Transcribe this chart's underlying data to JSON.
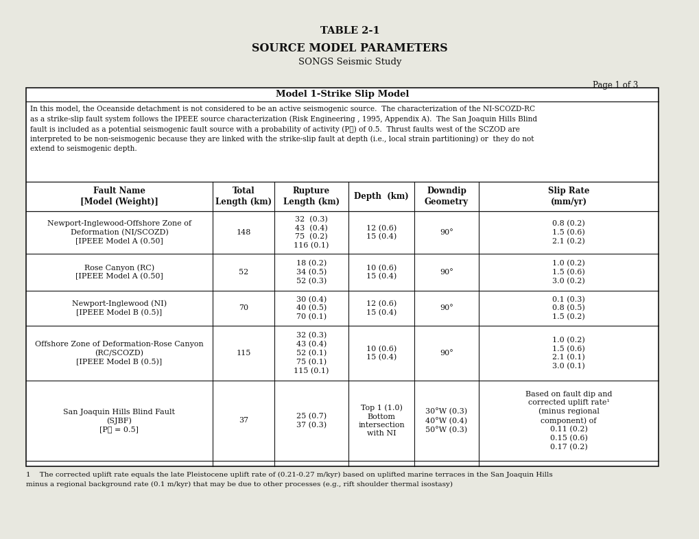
{
  "title1": "TABLE 2-1",
  "title2": "SOURCE MODEL PARAMETERS",
  "title3": "SONGS Seismic Study",
  "page": "Page 1 of 3",
  "model_header": "Model 1-Strike Slip Model",
  "intro_lines": [
    "In this model, the Oceanside detachment is not considered to be an active seismogenic source.  The characterization of the NI-SCOZD-RC",
    "as a strike-slip fault system follows the IPEEE source characterization (Risk Engineering , 1995, Appendix A).  The San Joaquin Hills Blind",
    "fault is included as a potential seismogenic fault source with a probability of activity (P⁁) of 0.5.  Thrust faults west of the SCZOD are",
    "interpreted to be non-seismogenic because they are linked with the strike-slip fault at depth (i.e., local strain partitioning) or  they do not",
    "extend to seismogenic depth."
  ],
  "col_headers": [
    "Fault Name\n[Model (Weight)]",
    "Total\nLength (km)",
    "Rupture\nLength (km)",
    "Depth  (km)",
    "Downdip\nGeometry",
    "Slip Rate\n(mm/yr)"
  ],
  "rows": [
    {
      "fault": "Newport-Inglewood-Offshore Zone of\nDeformation (NI/SCOZD)\n[IPEEE Model A (0.50]",
      "total_len": "148",
      "rupture_len": "32  (0.3)\n43  (0.4)\n75  (0.2)\n116 (0.1)",
      "depth": "12 (0.6)\n15 (0.4)",
      "downdip": "90°",
      "slip_rate": "0.8 (0.2)\n1.5 (0.6)\n2.1 (0.2)"
    },
    {
      "fault": "Rose Canyon (RC)\n[IPEEE Model A (0.50]",
      "total_len": "52",
      "rupture_len": "18 (0.2)\n34 (0.5)\n52 (0.3)",
      "depth": "10 (0.6)\n15 (0.4)",
      "downdip": "90°",
      "slip_rate": "1.0 (0.2)\n1.5 (0.6)\n3.0 (0.2)"
    },
    {
      "fault": "Newport-Inglewood (NI)\n[IPEEE Model B (0.5)]",
      "total_len": "70",
      "rupture_len": "30 (0.4)\n40 (0.5)\n70 (0.1)",
      "depth": "12 (0.6)\n15 (0.4)",
      "downdip": "90°",
      "slip_rate": "0.1 (0.3)\n0.8 (0.5)\n1.5 (0.2)"
    },
    {
      "fault": "Offshore Zone of Deformation-Rose Canyon\n(RC/SCOZD)\n[IPEEE Model B (0.5)]",
      "total_len": "115",
      "rupture_len": "32 (0.3)\n43 (0.4)\n52 (0.1)\n75 (0.1)\n115 (0.1)",
      "depth": "10 (0.6)\n15 (0.4)",
      "downdip": "90°",
      "slip_rate": "1.0 (0.2)\n1.5 (0.6)\n2.1 (0.1)\n3.0 (0.1)"
    },
    {
      "fault": "San Joaquin Hills Blind Fault\n(SJBF)\n[P⁁ = 0.5]",
      "total_len": "37",
      "rupture_len": "25 (0.7)\n37 (0.3)",
      "depth": "Top 1 (1.0)\nBottom\nintersection\nwith NI",
      "downdip": "30°W (0.3)\n40°W (0.4)\n50°W (0.3)",
      "slip_rate": "Based on fault dip and\ncorrected uplift rate¹\n(minus regional\ncomponent) of\n0.11 (0.2)\n0.15 (0.6)\n0.17 (0.2)"
    }
  ],
  "footnote_num": "1",
  "footnote_text": "   The corrected uplift rate equals the late Pleistocene uplift rate of (0.21-0.27 m/kyr) based on uplifted marine terraces in the San Joaquin Hills",
  "footnote_line2": "minus a regional background rate (0.1 m/kyr) that may be due to other processes (e.g., rift shoulder thermal isostasy)",
  "bg_color": "#e8e8e0",
  "table_bg": "#ffffff",
  "border_color": "#111111",
  "text_color": "#111111"
}
